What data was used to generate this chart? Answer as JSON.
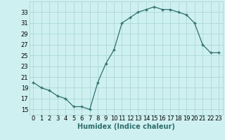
{
  "x": [
    0,
    1,
    2,
    3,
    4,
    5,
    6,
    7,
    8,
    9,
    10,
    11,
    12,
    13,
    14,
    15,
    16,
    17,
    18,
    19,
    20,
    21,
    22,
    23
  ],
  "y": [
    20,
    19,
    18.5,
    17.5,
    17,
    15.5,
    15.5,
    15,
    20,
    23.5,
    26,
    31,
    32,
    33,
    33.5,
    34,
    33.5,
    33.5,
    33,
    32.5,
    31,
    27,
    25.5,
    25.5
  ],
  "xlabel": "Humidex (Indice chaleur)",
  "xlim": [
    -0.5,
    23.5
  ],
  "ylim": [
    14,
    35
  ],
  "yticks": [
    15,
    17,
    19,
    21,
    23,
    25,
    27,
    29,
    31,
    33
  ],
  "xticks": [
    0,
    1,
    2,
    3,
    4,
    5,
    6,
    7,
    8,
    9,
    10,
    11,
    12,
    13,
    14,
    15,
    16,
    17,
    18,
    19,
    20,
    21,
    22,
    23
  ],
  "line_color": "#2e6e6e",
  "marker": "+",
  "bg_color": "#cff0f0",
  "grid_color": "#aad8d8",
  "label_fontsize": 7,
  "tick_fontsize": 6
}
